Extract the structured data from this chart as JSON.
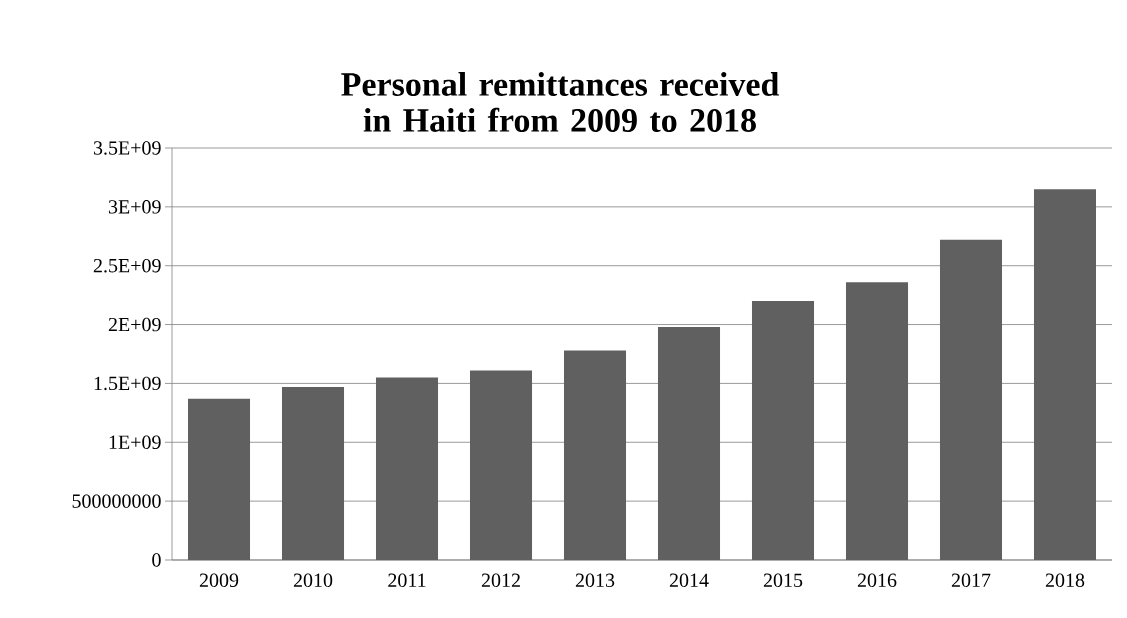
{
  "chart_data": {
    "type": "bar",
    "title": "Personal remittances received in Haiti from 2009 to 2018",
    "categories": [
      "2009",
      "2010",
      "2011",
      "2012",
      "2013",
      "2014",
      "2015",
      "2016",
      "2017",
      "2018"
    ],
    "values": [
      1370000000,
      1470000000,
      1550000000,
      1610000000,
      1780000000,
      1980000000,
      2200000000,
      2360000000,
      2720000000,
      3150000000
    ],
    "color": "#606060",
    "ylim": [
      0,
      3500000000
    ],
    "yticks": [
      0,
      500000000,
      {
        "value": 1000000000,
        "label": "1E+09"
      },
      {
        "value": 1500000000,
        "label": "1.5E+09"
      },
      {
        "value": 2000000000,
        "label": "2E+09"
      },
      {
        "value": 2500000000,
        "label": "2.5E+09"
      },
      {
        "value": 3000000000,
        "label": "3E+09"
      },
      {
        "value": 3500000000,
        "label": "3.5E+09"
      }
    ],
    "grid": "y"
  }
}
